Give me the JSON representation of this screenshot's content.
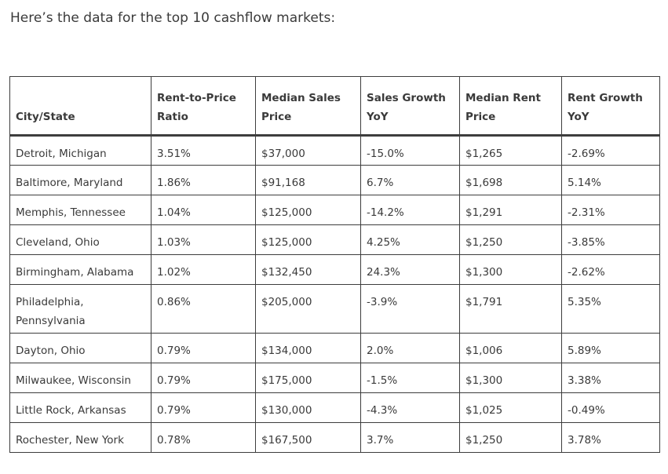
{
  "intro": "Here’s the data for the top 10 cashflow markets:",
  "table": {
    "headers": [
      "City/State",
      "Rent-to-Price Ratio",
      "Median Sales Price",
      "Sales Growth YoY",
      "Median Rent Price",
      "Rent Growth YoY"
    ],
    "rows": [
      [
        "Detroit, Michigan",
        "3.51%",
        "$37,000",
        "-15.0%",
        "$1,265",
        "-2.69%"
      ],
      [
        "Baltimore, Maryland",
        "1.86%",
        "$91,168",
        "6.7%",
        "$1,698",
        "5.14%"
      ],
      [
        "Memphis, Tennessee",
        "1.04%",
        "$125,000",
        "-14.2%",
        "$1,291",
        "-2.31%"
      ],
      [
        "Cleveland, Ohio",
        "1.03%",
        "$125,000",
        "4.25%",
        "$1,250",
        "-3.85%"
      ],
      [
        "Birmingham, Alabama",
        "1.02%",
        "$132,450",
        "24.3%",
        "$1,300",
        "-2.62%"
      ],
      [
        "Philadelphia, Pennsylvania",
        "0.86%",
        "$205,000",
        "-3.9%",
        "$1,791",
        "5.35%"
      ],
      [
        "Dayton, Ohio",
        "0.79%",
        "$134,000",
        "2.0%",
        "$1,006",
        "5.89%"
      ],
      [
        "Milwaukee, Wisconsin",
        "0.79%",
        "$175,000",
        "-1.5%",
        "$1,300",
        "3.38%"
      ],
      [
        "Little Rock, Arkansas",
        "0.79%",
        "$130,000",
        "-4.3%",
        "$1,025",
        "-0.49%"
      ],
      [
        "Rochester, New York",
        "0.78%",
        "$167,500",
        "3.7%",
        "$1,250",
        "3.78%"
      ]
    ]
  }
}
